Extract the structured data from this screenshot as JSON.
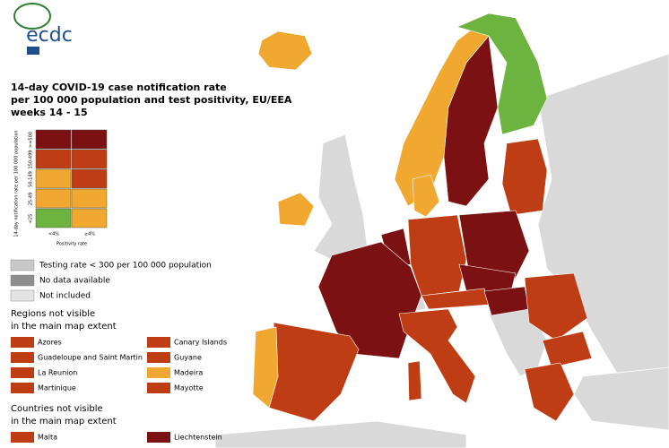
{
  "logo": "ecdc",
  "title": [
    "14-day COVID-19 case notification rate",
    "per 100 000 population and test positivity, EU/EEA",
    "weeks 14 - 15"
  ],
  "matrix": {
    "y_title": "14-day notification rate per 100 000 population",
    "y_labels": [
      ">=500",
      "150-499",
      "50-149",
      "25-49",
      "<25"
    ],
    "x_labels": [
      "<4%",
      "≥4%"
    ],
    "x_title": "Positivity rate",
    "colors": [
      [
        "#7b1113",
        "#7b1113"
      ],
      [
        "#bf3d14",
        "#bf3d14"
      ],
      [
        "#f0a830",
        "#bf3d14"
      ],
      [
        "#f0a830",
        "#f0a830"
      ],
      [
        "#6cb33f",
        "#f0a830"
      ]
    ]
  },
  "legend": [
    {
      "name": "Testing rate < 300 per 100 000 population",
      "color": "#c8c8c8"
    },
    {
      "name": "No data available",
      "color": "#8c8c8c"
    },
    {
      "name": "Not included",
      "color": "#e3e3e3"
    }
  ],
  "regions_heading": [
    "Regions not visible",
    "in the main map extent"
  ],
  "regions": [
    {
      "name": "Azores",
      "color": "#bf3d14"
    },
    {
      "name": "Canary Islands",
      "color": "#bf3d14"
    },
    {
      "name": "Guadeloupe and Saint Martin",
      "color": "#bf3d14"
    },
    {
      "name": "Guyane",
      "color": "#bf3d14"
    },
    {
      "name": "La Reunion",
      "color": "#bf3d14"
    },
    {
      "name": "Madeira",
      "color": "#f0a830"
    },
    {
      "name": "Martinique",
      "color": "#bf3d14"
    },
    {
      "name": "Mayotte",
      "color": "#bf3d14"
    }
  ],
  "countries_heading": [
    "Countries not visible",
    "in the main map extent"
  ],
  "countries": [
    {
      "name": "Malta",
      "color": "#bf3d14"
    },
    {
      "name": "Liechtenstein",
      "color": "#7b1113"
    }
  ]
}
